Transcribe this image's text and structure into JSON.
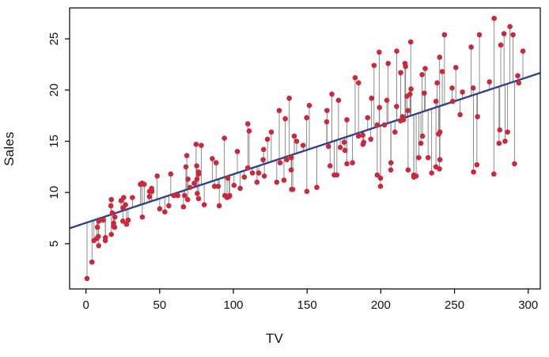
{
  "figure": {
    "description": "Scatter plot of Sales versus TV advertising budget with least-squares regression line and residual segments",
    "background": "#ffffff"
  },
  "chart_data": {
    "type": "scatter",
    "title": "",
    "xlabel": "TV",
    "ylabel": "Sales",
    "xlim": [
      -11.1,
      308.2
    ],
    "ylim": [
      0.58,
      28.02
    ],
    "x_ticks": [
      0,
      50,
      100,
      150,
      200,
      250,
      300
    ],
    "y_ticks": [
      5,
      10,
      15,
      20,
      25
    ],
    "grid": false,
    "legend": "none",
    "point_color": "#c9293c",
    "line_color": "#33408f",
    "residual_color": "#808080",
    "frame_color": "#000000",
    "regression": {
      "intercept": 7.0326,
      "slope": 0.0475
    },
    "x": [
      230.1,
      44.5,
      17.2,
      151.5,
      180.8,
      8.7,
      57.5,
      120.2,
      8.6,
      199.8,
      66.1,
      214.7,
      23.8,
      97.5,
      204.1,
      195.4,
      67.8,
      281.4,
      69.2,
      147.3,
      218.4,
      237.4,
      13.2,
      228.3,
      62.3,
      262.9,
      142.9,
      240.1,
      248.8,
      70.6,
      292.9,
      112.9,
      97.2,
      265.6,
      95.7,
      290.7,
      266.9,
      74.7,
      43.1,
      228.0,
      202.5,
      177.0,
      293.6,
      206.9,
      25.1,
      175.1,
      89.7,
      239.9,
      227.2,
      66.9,
      199.8,
      100.4,
      216.4,
      182.6,
      262.7,
      198.9,
      7.3,
      136.2,
      210.8,
      210.7,
      53.5,
      261.3,
      239.3,
      102.7,
      131.1,
      69.0,
      31.5,
      139.3,
      237.4,
      216.8,
      199.1,
      109.8,
      26.8,
      129.4,
      213.4,
      16.9,
      27.5,
      120.5,
      5.4,
      116.0,
      76.4,
      239.8,
      75.3,
      68.4,
      213.5,
      193.2,
      76.3,
      110.7,
      88.3,
      109.8,
      134.3,
      28.6,
      217.7,
      250.9,
      107.4,
      163.3,
      197.6,
      184.9,
      289.7,
      135.2,
      222.4,
      296.4,
      280.2,
      187.9,
      238.2,
      137.9,
      25.0,
      90.4,
      13.1,
      255.4,
      225.8,
      241.7,
      175.7,
      209.6,
      78.2,
      75.1,
      139.2,
      76.4,
      125.7,
      19.4,
      141.3,
      18.8,
      224.0,
      123.1,
      229.5,
      87.2,
      7.8,
      80.2,
      220.3,
      59.6,
      0.7,
      265.2,
      8.4,
      219.8,
      36.9,
      48.3,
      25.6,
      273.7,
      43.0,
      184.9,
      73.4,
      193.7,
      220.5,
      104.6,
      96.2,
      140.3,
      240.1,
      243.2,
      38.0,
      44.7,
      280.7,
      121.0,
      197.6,
      171.3,
      187.8,
      4.1,
      93.9,
      149.8,
      11.7,
      131.7,
      172.5,
      85.7,
      188.4,
      163.5,
      117.2,
      234.5,
      17.9,
      206.8,
      215.4,
      284.3,
      50.0,
      164.5,
      19.6,
      168.4,
      222.4,
      276.9,
      248.4,
      170.2,
      276.7,
      165.6,
      156.6,
      218.5,
      56.2,
      287.6,
      253.8,
      205.0,
      139.5,
      191.1,
      286.0,
      18.7,
      39.5,
      75.5,
      17.2,
      166.8,
      149.7,
      38.2,
      94.2,
      177.0,
      283.6,
      232.1
    ],
    "y": [
      22.1,
      10.4,
      9.3,
      18.5,
      12.9,
      7.2,
      11.8,
      13.2,
      4.8,
      10.6,
      8.6,
      17.4,
      9.2,
      9.7,
      19.0,
      22.4,
      12.5,
      24.4,
      11.3,
      14.6,
      18.0,
      12.5,
      5.6,
      15.5,
      9.7,
      12.0,
      15.0,
      15.9,
      18.9,
      10.5,
      21.4,
      11.9,
      9.6,
      17.4,
      9.5,
      12.8,
      25.4,
      14.7,
      10.1,
      21.5,
      16.6,
      17.1,
      20.7,
      12.9,
      8.5,
      14.9,
      10.6,
      23.2,
      14.8,
      9.7,
      11.4,
      10.7,
      22.6,
      21.2,
      20.2,
      23.7,
      5.5,
      13.2,
      23.8,
      18.4,
      8.1,
      24.2,
      15.7,
      14.0,
      18.0,
      9.3,
      9.5,
      13.4,
      18.9,
      22.3,
      18.3,
      12.4,
      8.8,
      11.0,
      17.0,
      8.7,
      6.9,
      14.2,
      5.3,
      11.0,
      11.8,
      12.3,
      11.3,
      13.6,
      21.7,
      15.2,
      12.0,
      16.0,
      12.9,
      16.7,
      11.2,
      7.3,
      19.4,
      22.2,
      11.5,
      16.9,
      11.7,
      15.5,
      25.4,
      17.2,
      11.7,
      23.8,
      14.8,
      14.7,
      20.7,
      19.2,
      7.2,
      8.7,
      5.3,
      19.8,
      13.4,
      21.8,
      14.1,
      15.9,
      14.6,
      12.6,
      12.2,
      9.4,
      15.9,
      6.6,
      15.5,
      7.0,
      11.6,
      15.2,
      19.7,
      10.6,
      6.6,
      8.8,
      24.7,
      9.7,
      1.6,
      12.7,
      5.7,
      19.6,
      10.8,
      11.6,
      9.5,
      20.8,
      9.6,
      20.7,
      10.9,
      19.2,
      20.1,
      10.4,
      11.4,
      10.3,
      13.2,
      25.4,
      10.9,
      10.1,
      16.1,
      11.6,
      16.6,
      19.0,
      15.6,
      3.2,
      15.3,
      10.1,
      7.3,
      12.9,
      14.4,
      13.3,
      14.9,
      18.0,
      11.9,
      11.9,
      8.0,
      12.2,
      17.1,
      15.0,
      8.4,
      14.5,
      7.6,
      11.7,
      11.5,
      27.0,
      20.2,
      11.7,
      11.8,
      12.6,
      10.5,
      12.2,
      8.7,
      26.2,
      17.6,
      22.6,
      10.3,
      17.3,
      15.9,
      6.7,
      10.8,
      9.9,
      5.9,
      19.6,
      17.3,
      7.6,
      9.7,
      12.8,
      25.5,
      13.4
    ]
  }
}
